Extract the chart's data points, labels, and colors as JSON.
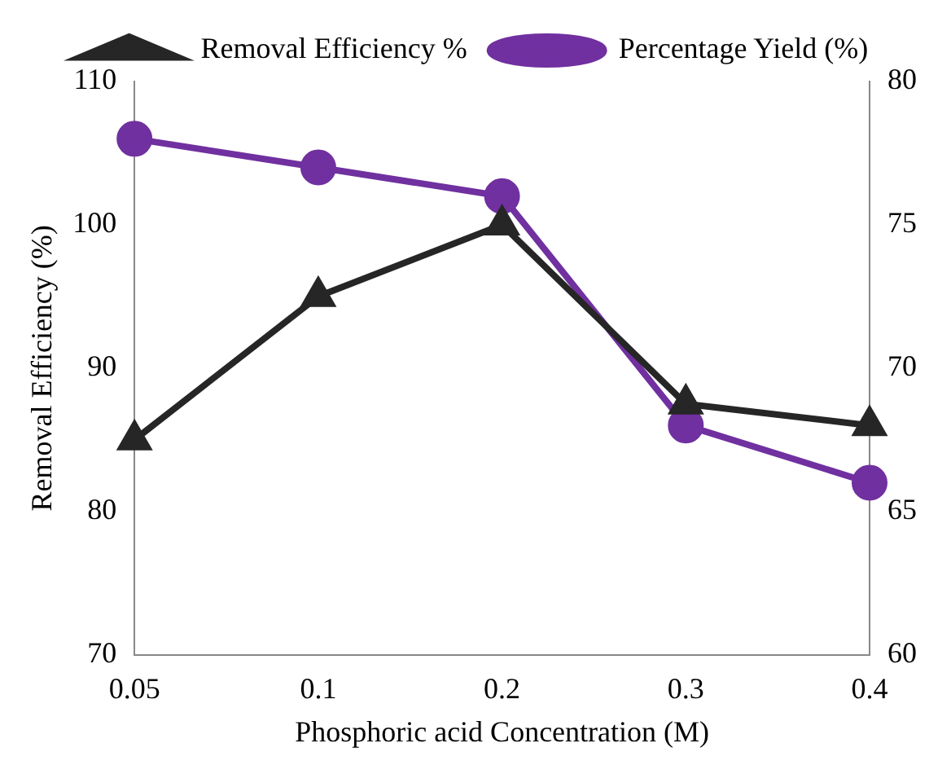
{
  "chart_data": {
    "type": "line",
    "categories": [
      "0.05",
      "0.1",
      "0.2",
      "0.3",
      "0.4"
    ],
    "series": [
      {
        "name": "Removal Efficiency %",
        "color": "#262626",
        "values": [
          85,
          95,
          100,
          87.5,
          86
        ],
        "marker": "triangle"
      },
      {
        "name": "Percentage Yield (%)",
        "color": "#7030a0",
        "values": [
          78,
          77,
          76,
          68,
          66
        ],
        "marker": "circle",
        "axis": "y2"
      }
    ],
    "xlabel": "Phosphoric acid Concentration (M)",
    "ylabel": "Removal Efficiency (%)",
    "ylim": [
      70,
      110
    ],
    "yticks": [
      70,
      80,
      90,
      100,
      110
    ],
    "y2lim": [
      60,
      80
    ],
    "y2ticks": [
      60,
      65,
      70,
      75,
      80
    ],
    "grid": false,
    "legend": "top",
    "line_style": "solid"
  }
}
